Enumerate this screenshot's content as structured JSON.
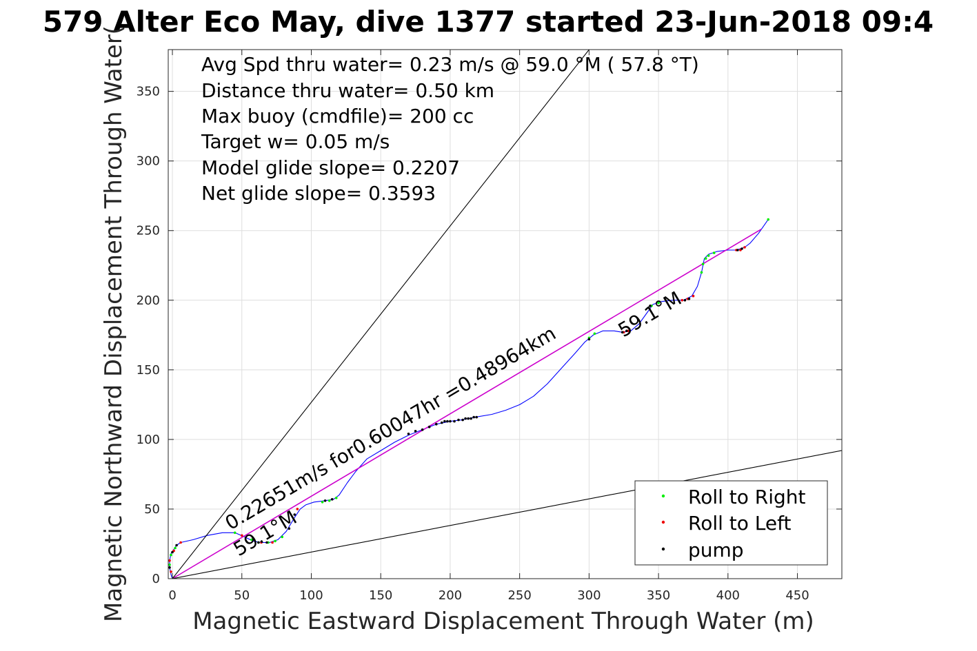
{
  "chart_data": {
    "type": "line",
    "title": "579 Alter Eco May, dive 1377 started 23-Jun-2018 09:4",
    "xlabel": "Magnetic Eastward Displacement Through Water (m)",
    "ylabel": "Magnetic Northward Displacement Through Water(",
    "xlim": [
      -3,
      482
    ],
    "ylim": [
      0,
      380
    ],
    "xticks": [
      0,
      50,
      100,
      150,
      200,
      250,
      300,
      350,
      400,
      450
    ],
    "yticks": [
      0,
      50,
      100,
      150,
      200,
      250,
      300,
      350
    ],
    "grid": true,
    "legend_position": "bottom-right",
    "annotations": [
      "Avg Spd thru water=  0.23 m/s @  59.0 °M ( 57.8 °T)",
      "Distance thru water=  0.50 km",
      "Max buoy (cmdfile)= 200 cc",
      "Target w= 0.05 m/s",
      "Model glide slope= 0.2207",
      "Net glide slope= 0.3593"
    ],
    "line_labels": {
      "speed": "0.22651m/s for0.60047hr =0.48964km",
      "heading_start": "59.1°M",
      "heading_end": "59.1°M"
    },
    "series": [
      {
        "name": "",
        "color": "#0000ff",
        "points": [
          [
            0,
            0
          ],
          [
            -1,
            3
          ],
          [
            -2,
            8
          ],
          [
            -2,
            13
          ],
          [
            -1,
            18
          ],
          [
            1,
            21
          ],
          [
            3,
            24
          ],
          [
            6,
            26
          ],
          [
            15,
            28
          ],
          [
            25,
            31
          ],
          [
            36,
            33
          ],
          [
            45,
            33
          ],
          [
            52,
            30
          ],
          [
            58,
            27
          ],
          [
            64,
            26
          ],
          [
            70,
            26
          ],
          [
            76,
            28
          ],
          [
            82,
            34
          ],
          [
            88,
            44
          ],
          [
            92,
            50
          ],
          [
            96,
            53
          ],
          [
            102,
            55
          ],
          [
            110,
            56
          ],
          [
            116,
            57
          ],
          [
            120,
            60
          ],
          [
            126,
            69
          ],
          [
            132,
            77
          ],
          [
            140,
            86
          ],
          [
            150,
            92
          ],
          [
            160,
            98
          ],
          [
            170,
            103
          ],
          [
            180,
            107
          ],
          [
            190,
            111
          ],
          [
            200,
            113
          ],
          [
            208,
            114
          ],
          [
            218,
            116
          ],
          [
            230,
            118
          ],
          [
            240,
            121
          ],
          [
            250,
            125
          ],
          [
            260,
            131
          ],
          [
            270,
            140
          ],
          [
            280,
            151
          ],
          [
            290,
            162
          ],
          [
            297,
            170
          ],
          [
            303,
            175
          ],
          [
            310,
            178
          ],
          [
            318,
            178
          ],
          [
            324,
            177
          ],
          [
            330,
            178
          ],
          [
            336,
            183
          ],
          [
            341,
            190
          ],
          [
            346,
            197
          ],
          [
            352,
            199
          ],
          [
            360,
            200
          ],
          [
            368,
            200
          ],
          [
            374,
            203
          ],
          [
            378,
            210
          ],
          [
            381,
            220
          ],
          [
            383,
            230
          ],
          [
            386,
            233
          ],
          [
            392,
            235
          ],
          [
            400,
            236
          ],
          [
            406,
            236
          ],
          [
            412,
            238
          ],
          [
            416,
            241
          ],
          [
            422,
            248
          ],
          [
            429,
            258
          ]
        ]
      },
      {
        "name": "",
        "color": "#cc00cc",
        "points": [
          [
            0,
            0
          ],
          [
            424,
            251
          ]
        ]
      },
      {
        "name": "",
        "color": "#000000",
        "points": [
          [
            0,
            0
          ],
          [
            300,
            380
          ]
        ]
      },
      {
        "name": "",
        "color": "#000000",
        "points": [
          [
            0,
            0
          ],
          [
            487,
            93
          ]
        ]
      }
    ],
    "markers": [
      {
        "name": "Roll to Right",
        "color": "#00ee00",
        "points": [
          [
            -2,
            10
          ],
          [
            -1,
            17
          ],
          [
            2,
            22
          ],
          [
            45,
            33
          ],
          [
            57,
            28
          ],
          [
            62,
            26
          ],
          [
            69,
            26
          ],
          [
            74,
            27
          ],
          [
            79,
            30
          ],
          [
            108,
            55
          ],
          [
            113,
            56
          ],
          [
            118,
            58
          ],
          [
            300,
            173
          ],
          [
            304,
            176
          ],
          [
            345,
            196
          ],
          [
            350,
            198
          ],
          [
            381,
            220
          ],
          [
            382,
            226
          ],
          [
            384,
            230
          ],
          [
            386,
            232
          ],
          [
            390,
            234
          ],
          [
            429,
            258
          ]
        ]
      },
      {
        "name": "Roll to Left",
        "color": "#ee0000",
        "points": [
          [
            -1,
            5
          ],
          [
            -2,
            13
          ],
          [
            1,
            20
          ],
          [
            6,
            26
          ],
          [
            50,
            31
          ],
          [
            64,
            26
          ],
          [
            72,
            26
          ],
          [
            90,
            50
          ],
          [
            325,
            177
          ],
          [
            328,
            178
          ],
          [
            367,
            200
          ],
          [
            371,
            201
          ],
          [
            375,
            203
          ],
          [
            406,
            236
          ],
          [
            409,
            236
          ],
          [
            412,
            238
          ]
        ]
      },
      {
        "name": "pump",
        "color": "#000000",
        "points": [
          [
            -2,
            8
          ],
          [
            0,
            19
          ],
          [
            3,
            24
          ],
          [
            62,
            26
          ],
          [
            68,
            26
          ],
          [
            84,
            36
          ],
          [
            88,
            46
          ],
          [
            110,
            56
          ],
          [
            115,
            57
          ],
          [
            170,
            104
          ],
          [
            175,
            106
          ],
          [
            180,
            107
          ],
          [
            185,
            109
          ],
          [
            190,
            111
          ],
          [
            194,
            112
          ],
          [
            196,
            113
          ],
          [
            198,
            113
          ],
          [
            200,
            113
          ],
          [
            203,
            113
          ],
          [
            206,
            114
          ],
          [
            209,
            114
          ],
          [
            211,
            115
          ],
          [
            213,
            115
          ],
          [
            215,
            115
          ],
          [
            217,
            116
          ],
          [
            219,
            116
          ],
          [
            300,
            172
          ],
          [
            324,
            177
          ],
          [
            327,
            178
          ],
          [
            344,
            196
          ],
          [
            369,
            200
          ],
          [
            372,
            201
          ],
          [
            407,
            236
          ],
          [
            410,
            237
          ]
        ]
      }
    ]
  }
}
